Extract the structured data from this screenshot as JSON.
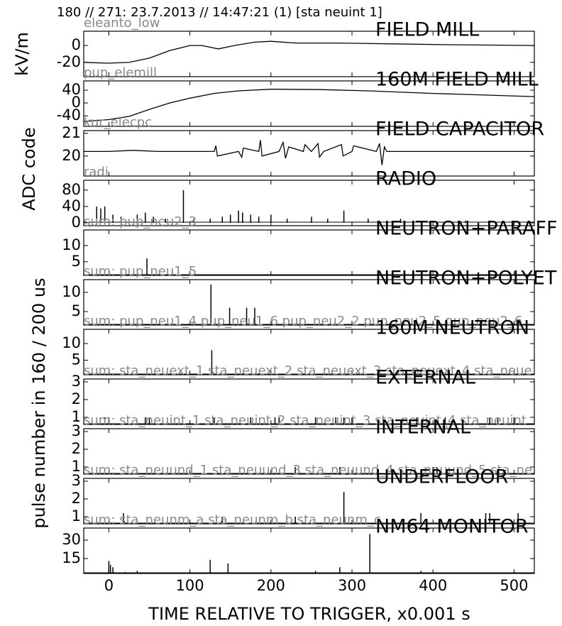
{
  "header": "180 // 271:   23.7.2013 // 14:47:21 (1)  [sta neuint 1]",
  "xlabel": "TIME RELATIVE TO TRIGGER,   x0.001 s",
  "ylabels": [
    "kV/m",
    "ADC code",
    "pulse number in 160 / 200 us"
  ],
  "chart_data": [
    {
      "type": "line",
      "title": "FIELD MILL",
      "source": "eleanto_low",
      "color": "#000000",
      "xlim": [
        -31,
        525
      ],
      "xticks": [
        0,
        100,
        200,
        300,
        400,
        500
      ],
      "ylim": [
        -37,
        17
      ],
      "yticks": [
        -20,
        0
      ],
      "x": [
        -31,
        0,
        25,
        50,
        75,
        100,
        115,
        135,
        155,
        180,
        200,
        230,
        280,
        350,
        420,
        525
      ],
      "values": [
        -20,
        -21,
        -20,
        -15,
        -6,
        0,
        0,
        -4,
        0,
        4,
        5,
        3,
        3,
        2,
        1,
        0
      ]
    },
    {
      "type": "line",
      "title": "160M FIELD MILL",
      "source": "pup_elemill",
      "color": "#000000",
      "xlim": [
        -31,
        525
      ],
      "xticks": [
        0,
        100,
        200,
        300,
        400,
        500
      ],
      "ylim": [
        -73,
        69
      ],
      "yticks": [
        -40,
        0,
        40
      ],
      "x": [
        -31,
        0,
        25,
        50,
        75,
        100,
        130,
        160,
        200,
        260,
        320,
        400,
        525
      ],
      "values": [
        -58,
        -52,
        -42,
        -20,
        0,
        15,
        30,
        38,
        43,
        42,
        38,
        30,
        20
      ]
    },
    {
      "type": "line",
      "title": "FIELD CAPACITOR",
      "source": "kur_elecpc",
      "color": "#000000",
      "xlim": [
        -31,
        525
      ],
      "xticks": [
        0,
        100,
        200,
        300,
        400,
        500
      ],
      "ylim": [
        19.12,
        21.12
      ],
      "yticks": [
        20,
        21
      ],
      "x": [
        -31,
        0,
        30,
        60,
        100,
        130,
        132,
        134,
        160,
        164,
        166,
        185,
        187,
        189,
        210,
        215,
        218,
        222,
        240,
        242,
        250,
        258,
        260,
        265,
        287,
        289,
        300,
        302,
        330,
        334,
        337,
        340,
        343,
        380,
        450,
        525
      ],
      "values": [
        20.2,
        20.2,
        20.25,
        20.2,
        20.2,
        20.2,
        20.45,
        20.0,
        20.2,
        19.95,
        20.35,
        20.2,
        20.7,
        20.0,
        20.2,
        20.6,
        19.9,
        20.4,
        20.2,
        20.5,
        20.2,
        20.55,
        19.95,
        20.2,
        20.5,
        20.0,
        20.2,
        20.45,
        20.2,
        20.55,
        19.6,
        20.4,
        20.2,
        20.2,
        20.2,
        20.2
      ]
    },
    {
      "type": "bar",
      "title": "RADIO",
      "source": "radi",
      "color": "#000000",
      "xlim": [
        -31,
        525
      ],
      "xticks": [
        0,
        100,
        200,
        300,
        400,
        500
      ],
      "ylim": [
        -7,
        104
      ],
      "yticks": [
        0,
        40,
        80
      ],
      "x": [
        -15,
        -10,
        -5,
        5,
        15,
        35,
        45,
        55,
        70,
        92,
        105,
        125,
        140,
        150,
        160,
        165,
        175,
        185,
        200,
        220,
        250,
        270,
        290,
        320,
        360,
        400,
        440
      ],
      "values": [
        40,
        35,
        40,
        20,
        15,
        20,
        25,
        15,
        10,
        80,
        10,
        10,
        15,
        20,
        30,
        25,
        20,
        15,
        20,
        10,
        15,
        10,
        30,
        10,
        10,
        5,
        5
      ]
    },
    {
      "type": "bar",
      "title": "NEUTRON+PARAFF",
      "source": "sum: pup_neu2_3",
      "color": "#000000",
      "xlim": [
        -31,
        525
      ],
      "xticks": [
        0,
        100,
        200,
        300,
        400,
        500
      ],
      "ylim": [
        0.8,
        14.8
      ],
      "yticks": [
        5,
        10
      ],
      "x": [
        47
      ],
      "values": [
        6
      ]
    },
    {
      "type": "bar",
      "title": "NEUTRON+POLYET",
      "source": "sum: pup_neu1_5",
      "color": "#000000",
      "xlim": [
        -31,
        525
      ],
      "xticks": [
        0,
        100,
        200,
        300,
        400,
        500
      ],
      "ylim": [
        1.5,
        13.3
      ],
      "yticks": [
        5,
        10
      ],
      "x": [
        126,
        149,
        170,
        180
      ],
      "values": [
        12,
        6,
        6,
        6
      ]
    },
    {
      "type": "bar",
      "title": "160M NEUTRON",
      "source": "sum: pup_neu1_4 pup_neu1_6 pup_neu2_2 pup_neu2_5 pup_neu2_6",
      "color": "#000000",
      "xlim": [
        -31,
        525
      ],
      "xticks": [
        0,
        100,
        200,
        300,
        400,
        500
      ],
      "ylim": [
        0.6,
        14.3
      ],
      "yticks": [
        5,
        10
      ],
      "x": [
        127
      ],
      "values": [
        8
      ]
    },
    {
      "type": "bar",
      "title": "EXTERNAL",
      "source": "sum: sta_neuext_1 sta_neuext_2 sta_neuext_3 sta_neuext_4 sta_neue",
      "color": "#000000",
      "xlim": [
        -31,
        525
      ],
      "xticks": [
        0,
        100,
        200,
        300,
        400,
        500
      ],
      "ylim": [
        0.6,
        3.16
      ],
      "yticks": [
        1,
        2,
        3
      ],
      "x": [
        -5,
        0,
        45,
        50,
        130,
        175,
        205,
        210,
        255,
        280,
        290,
        300,
        380,
        415,
        470,
        480,
        500
      ],
      "values": [
        1,
        1,
        1,
        1,
        1,
        1,
        1,
        1,
        1,
        1,
        1,
        1,
        1,
        1,
        1,
        1,
        1
      ]
    },
    {
      "type": "bar",
      "title": "INTERNAL",
      "source": "sum: sta_neuint_1 sta_neuint_2 sta_neuint_3 sta_neuint_4 sta_neuint",
      "color": "#000000",
      "xlim": [
        -31,
        525
      ],
      "xticks": [
        0,
        100,
        200,
        300,
        400,
        500
      ],
      "ylim": [
        0.6,
        3.16
      ],
      "yticks": [
        1,
        2,
        3
      ],
      "x": [
        230,
        285,
        400,
        405
      ],
      "values": [
        1,
        1,
        1,
        1
      ]
    },
    {
      "type": "bar",
      "title": "UNDERFLOOR",
      "source": "sum: sta_neuund_1 sta_neuund_3 sta_neuund_4 sta_neuund_5 sta_ne",
      "color": "#000000",
      "xlim": [
        -31,
        525
      ],
      "xticks": [
        0,
        100,
        200,
        300,
        400,
        500
      ],
      "ylim": [
        0.6,
        3.16
      ],
      "yticks": [
        1,
        2,
        3
      ],
      "x": [
        18,
        140,
        230,
        290,
        385,
        465,
        470,
        505
      ],
      "values": [
        1.2,
        1,
        1,
        2.4,
        1.2,
        1.2,
        1.2,
        1.2
      ]
    },
    {
      "type": "bar",
      "title": "NM64 MONITOR",
      "source": "sum: sta_neunm_a sta_neunm_b sta_neunm_c",
      "color": "#000000",
      "xlim": [
        -31,
        525
      ],
      "xticks": [
        0,
        100,
        200,
        300,
        400,
        500
      ],
      "ylim": [
        2.9,
        39.8
      ],
      "yticks": [
        15,
        30
      ],
      "x": [
        0,
        2,
        5,
        20,
        35,
        125,
        147,
        255,
        285,
        322,
        385,
        450,
        500
      ],
      "values": [
        13,
        10,
        8,
        4,
        5,
        14,
        11,
        5,
        8,
        35,
        5,
        3,
        4
      ]
    }
  ]
}
